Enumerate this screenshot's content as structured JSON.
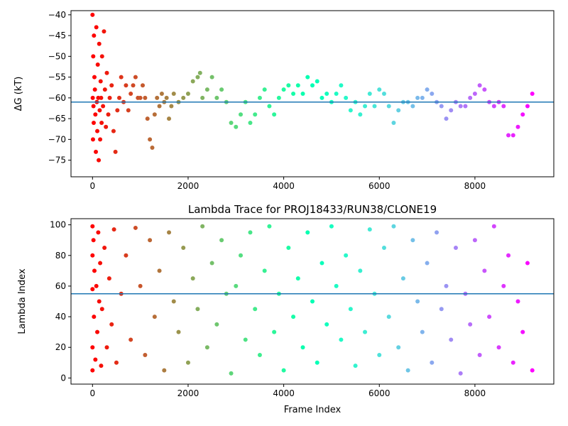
{
  "chart_data": [
    {
      "type": "scatter",
      "title": "",
      "xlabel": "",
      "ylabel": "ΔG (kT)",
      "xlim": [
        -450,
        9650
      ],
      "ylim": [
        -79,
        -39
      ],
      "xticks": [
        0,
        2000,
        4000,
        6000,
        8000
      ],
      "yticks": [
        -40,
        -45,
        -50,
        -55,
        -60,
        -65,
        -70,
        -75
      ],
      "xtick_labels": [
        "0",
        "2000",
        "4000",
        "6000",
        "8000"
      ],
      "ytick_labels": [
        "−40",
        "−45",
        "−50",
        "−55",
        "−60",
        "−65",
        "−70",
        "−75"
      ],
      "colormap": "rainbow (red at frame 0 → purple at frame 9200)",
      "hline": {
        "y": -61,
        "color": "#1f77b4"
      },
      "series": [
        {
          "points": [
            [
              0,
              -40
            ],
            [
              5,
              -60
            ],
            [
              10,
              -70
            ],
            [
              15,
              -50
            ],
            [
              20,
              -62
            ],
            [
              25,
              -66
            ],
            [
              30,
              -45
            ],
            [
              40,
              -55
            ],
            [
              50,
              -58
            ],
            [
              60,
              -64
            ],
            [
              70,
              -73
            ],
            [
              80,
              -43
            ],
            [
              90,
              -61
            ],
            [
              100,
              -68
            ],
            [
              110,
              -52
            ],
            [
              120,
              -60
            ],
            [
              130,
              -75
            ],
            [
              140,
              -47
            ],
            [
              150,
              -63
            ],
            [
              160,
              -70
            ],
            [
              170,
              -56
            ],
            [
              180,
              -60
            ],
            [
              190,
              -66
            ],
            [
              200,
              -50
            ],
            [
              220,
              -62
            ],
            [
              240,
              -44
            ],
            [
              260,
              -58
            ],
            [
              280,
              -67
            ],
            [
              300,
              -54
            ],
            [
              330,
              -64
            ],
            [
              360,
              -60
            ],
            [
              400,
              -57
            ],
            [
              440,
              -68
            ],
            [
              480,
              -73
            ],
            [
              520,
              -63
            ],
            [
              560,
              -60
            ],
            [
              600,
              -55
            ],
            [
              650,
              -61
            ],
            [
              700,
              -57
            ],
            [
              750,
              -63
            ],
            [
              800,
              -59
            ],
            [
              850,
              -57
            ],
            [
              900,
              -55
            ],
            [
              950,
              -60
            ],
            [
              1000,
              -60
            ],
            [
              1050,
              -57
            ],
            [
              1100,
              -60
            ],
            [
              1150,
              -65
            ],
            [
              1200,
              -70
            ],
            [
              1250,
              -72
            ],
            [
              1300,
              -64
            ],
            [
              1350,
              -60
            ],
            [
              1400,
              -62
            ],
            [
              1450,
              -59
            ],
            [
              1500,
              -61
            ],
            [
              1550,
              -60
            ],
            [
              1600,
              -65
            ],
            [
              1650,
              -62
            ],
            [
              1700,
              -59
            ],
            [
              1800,
              -61
            ],
            [
              1900,
              -60
            ],
            [
              2000,
              -59
            ],
            [
              2100,
              -56
            ],
            [
              2200,
              -55
            ],
            [
              2250,
              -54
            ],
            [
              2300,
              -60
            ],
            [
              2400,
              -58
            ],
            [
              2500,
              -55
            ],
            [
              2600,
              -60
            ],
            [
              2700,
              -58
            ],
            [
              2800,
              -61
            ],
            [
              2900,
              -66
            ],
            [
              3000,
              -67
            ],
            [
              3100,
              -64
            ],
            [
              3200,
              -61
            ],
            [
              3300,
              -66
            ],
            [
              3400,
              -64
            ],
            [
              3500,
              -60
            ],
            [
              3600,
              -58
            ],
            [
              3700,
              -62
            ],
            [
              3800,
              -64
            ],
            [
              3900,
              -60
            ],
            [
              4000,
              -58
            ],
            [
              4100,
              -57
            ],
            [
              4200,
              -59
            ],
            [
              4300,
              -57
            ],
            [
              4400,
              -59
            ],
            [
              4500,
              -55
            ],
            [
              4600,
              -57
            ],
            [
              4700,
              -56
            ],
            [
              4800,
              -60
            ],
            [
              4900,
              -59
            ],
            [
              5000,
              -61
            ],
            [
              5100,
              -59
            ],
            [
              5200,
              -57
            ],
            [
              5300,
              -60
            ],
            [
              5400,
              -63
            ],
            [
              5500,
              -61
            ],
            [
              5600,
              -64
            ],
            [
              5700,
              -62
            ],
            [
              5800,
              -59
            ],
            [
              5900,
              -62
            ],
            [
              6000,
              -58
            ],
            [
              6100,
              -59
            ],
            [
              6200,
              -62
            ],
            [
              6300,
              -66
            ],
            [
              6400,
              -63
            ],
            [
              6500,
              -61
            ],
            [
              6600,
              -61
            ],
            [
              6700,
              -62
            ],
            [
              6800,
              -60
            ],
            [
              6900,
              -60
            ],
            [
              7000,
              -58
            ],
            [
              7100,
              -59
            ],
            [
              7200,
              -61
            ],
            [
              7300,
              -62
            ],
            [
              7400,
              -65
            ],
            [
              7500,
              -63
            ],
            [
              7600,
              -61
            ],
            [
              7700,
              -62
            ],
            [
              7800,
              -62
            ],
            [
              7900,
              -60
            ],
            [
              8000,
              -59
            ],
            [
              8100,
              -57
            ],
            [
              8200,
              -58
            ],
            [
              8300,
              -61
            ],
            [
              8400,
              -62
            ],
            [
              8500,
              -61
            ],
            [
              8600,
              -62
            ],
            [
              8700,
              -69
            ],
            [
              8800,
              -69
            ],
            [
              8900,
              -67
            ],
            [
              9000,
              -64
            ],
            [
              9100,
              -62
            ],
            [
              9200,
              -59
            ]
          ]
        }
      ]
    },
    {
      "type": "scatter",
      "title": "Lambda Trace for PROJ18433/RUN38/CLONE19",
      "xlabel": "Frame Index",
      "ylabel": "Lambda Index",
      "xlim": [
        -450,
        9650
      ],
      "ylim": [
        -4,
        104
      ],
      "xticks": [
        0,
        2000,
        4000,
        6000,
        8000
      ],
      "yticks": [
        0,
        20,
        40,
        60,
        80,
        100
      ],
      "xtick_labels": [
        "0",
        "2000",
        "4000",
        "6000",
        "8000"
      ],
      "ytick_labels": [
        "0",
        "20",
        "40",
        "60",
        "80",
        "100"
      ],
      "colormap": "rainbow (red at frame 0 → purple at frame 9200)",
      "hline": {
        "y": 55,
        "color": "#1f77b4"
      },
      "series": [
        {
          "points": [
            [
              0,
              99
            ],
            [
              0,
              80
            ],
            [
              0,
              58
            ],
            [
              0,
              20
            ],
            [
              0,
              5
            ],
            [
              20,
              90
            ],
            [
              30,
              40
            ],
            [
              40,
              70
            ],
            [
              60,
              12
            ],
            [
              80,
              60
            ],
            [
              100,
              30
            ],
            [
              120,
              95
            ],
            [
              140,
              50
            ],
            [
              160,
              75
            ],
            [
              180,
              8
            ],
            [
              200,
              45
            ],
            [
              250,
              85
            ],
            [
              300,
              20
            ],
            [
              350,
              65
            ],
            [
              400,
              35
            ],
            [
              450,
              97
            ],
            [
              500,
              10
            ],
            [
              600,
              55
            ],
            [
              700,
              80
            ],
            [
              800,
              25
            ],
            [
              900,
              98
            ],
            [
              1000,
              60
            ],
            [
              1100,
              15
            ],
            [
              1200,
              90
            ],
            [
              1300,
              40
            ],
            [
              1400,
              70
            ],
            [
              1500,
              5
            ],
            [
              1600,
              95
            ],
            [
              1700,
              50
            ],
            [
              1800,
              30
            ],
            [
              1900,
              85
            ],
            [
              2000,
              10
            ],
            [
              2100,
              65
            ],
            [
              2200,
              45
            ],
            [
              2300,
              99
            ],
            [
              2400,
              20
            ],
            [
              2500,
              75
            ],
            [
              2600,
              35
            ],
            [
              2700,
              90
            ],
            [
              2800,
              55
            ],
            [
              2900,
              3
            ],
            [
              3000,
              60
            ],
            [
              3100,
              80
            ],
            [
              3200,
              25
            ],
            [
              3300,
              95
            ],
            [
              3400,
              45
            ],
            [
              3500,
              15
            ],
            [
              3600,
              70
            ],
            [
              3700,
              99
            ],
            [
              3800,
              30
            ],
            [
              3900,
              55
            ],
            [
              4000,
              5
            ],
            [
              4100,
              85
            ],
            [
              4200,
              40
            ],
            [
              4300,
              65
            ],
            [
              4400,
              20
            ],
            [
              4500,
              95
            ],
            [
              4600,
              50
            ],
            [
              4700,
              10
            ],
            [
              4800,
              75
            ],
            [
              4900,
              35
            ],
            [
              5000,
              99
            ],
            [
              5100,
              60
            ],
            [
              5200,
              25
            ],
            [
              5300,
              80
            ],
            [
              5400,
              45
            ],
            [
              5500,
              8
            ],
            [
              5600,
              70
            ],
            [
              5700,
              30
            ],
            [
              5800,
              97
            ],
            [
              5900,
              55
            ],
            [
              6000,
              15
            ],
            [
              6100,
              85
            ],
            [
              6200,
              40
            ],
            [
              6300,
              99
            ],
            [
              6400,
              20
            ],
            [
              6500,
              65
            ],
            [
              6600,
              5
            ],
            [
              6700,
              90
            ],
            [
              6800,
              50
            ],
            [
              6900,
              30
            ],
            [
              7000,
              75
            ],
            [
              7100,
              10
            ],
            [
              7200,
              95
            ],
            [
              7300,
              45
            ],
            [
              7400,
              60
            ],
            [
              7500,
              25
            ],
            [
              7600,
              85
            ],
            [
              7700,
              3
            ],
            [
              7800,
              55
            ],
            [
              7900,
              35
            ],
            [
              8000,
              90
            ],
            [
              8100,
              15
            ],
            [
              8200,
              70
            ],
            [
              8300,
              40
            ],
            [
              8400,
              99
            ],
            [
              8500,
              20
            ],
            [
              8600,
              60
            ],
            [
              8700,
              80
            ],
            [
              8800,
              10
            ],
            [
              8900,
              50
            ],
            [
              9000,
              30
            ],
            [
              9100,
              75
            ],
            [
              9200,
              5
            ]
          ]
        }
      ]
    }
  ]
}
